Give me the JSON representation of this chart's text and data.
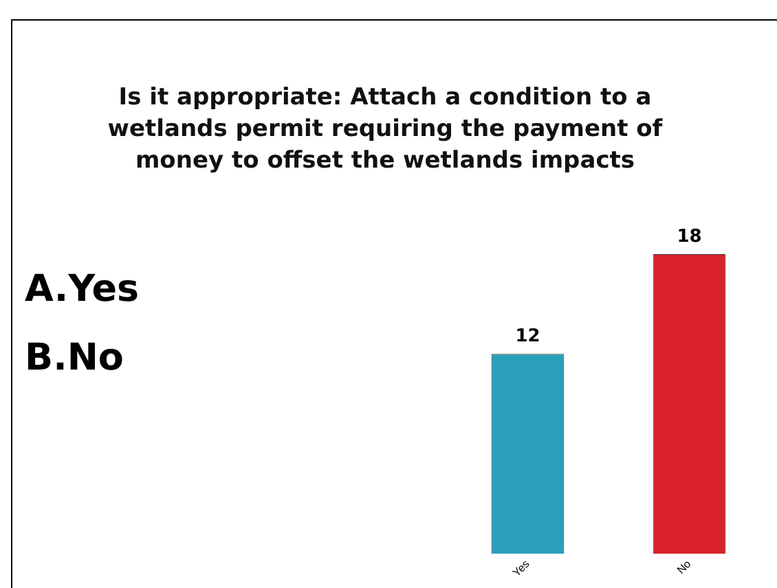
{
  "chart_data": {
    "type": "bar",
    "title": "Is it appropriate: Attach a condition to a wetlands permit requiring the payment of money to offset the wetlands impacts",
    "categories": [
      "Yes",
      "No"
    ],
    "values": [
      12,
      18
    ],
    "colors": [
      "#2a9fba",
      "#d9222b"
    ],
    "data_labels": true,
    "annotations": [
      "A.Yes",
      "B.No"
    ],
    "grid": false,
    "legend": false
  }
}
